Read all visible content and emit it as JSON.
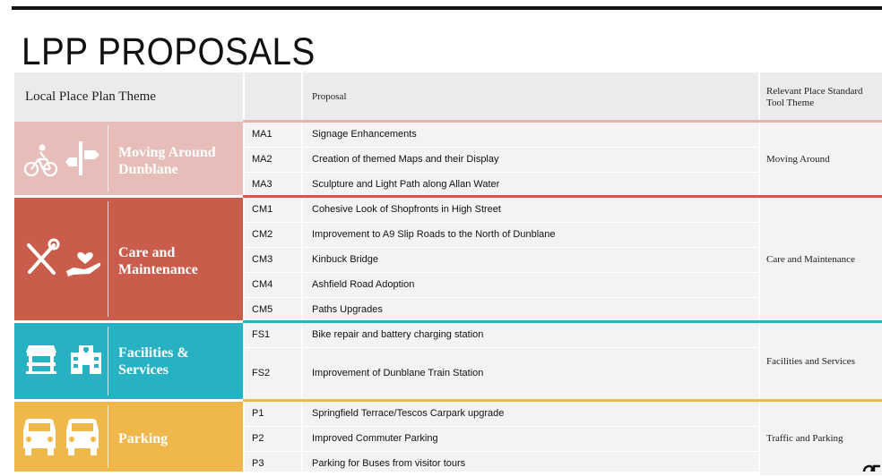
{
  "page": {
    "title": "LPP PROPOSALS"
  },
  "table": {
    "headers": {
      "theme": "Local Place Plan Theme",
      "code": "",
      "proposal": "Proposal",
      "relevant": "Relevant Place Standard Tool Theme"
    },
    "groups": [
      {
        "theme_line1": "Moving Around",
        "theme_line2": "Dunblane",
        "color": "#e6bdb8",
        "line_color": "#e8b4ae",
        "icons": [
          "cyclist-icon",
          "signpost-icon"
        ],
        "relevant": "Moving Around",
        "rows": [
          {
            "code": "MA1",
            "proposal": "Signage Enhancements"
          },
          {
            "code": "MA2",
            "proposal": "Creation of themed Maps and their Display"
          },
          {
            "code": "MA3",
            "proposal": "Sculpture and Light Path along Allan Water"
          }
        ]
      },
      {
        "theme_line1": "Care and",
        "theme_line2": "Maintenance",
        "color": "#c95c4b",
        "line_color": "#c95c4b",
        "icons": [
          "tools-icon",
          "caring-hand-icon"
        ],
        "relevant": "Care and Maintenance",
        "rows": [
          {
            "code": "CM1",
            "proposal": "Cohesive Look of Shopfronts in High Street"
          },
          {
            "code": "CM2",
            "proposal": "Improvement to A9 Slip Roads to the North of Dunblane"
          },
          {
            "code": "CM3",
            "proposal": "Kinbuck Bridge"
          },
          {
            "code": "CM4",
            "proposal": "Ashfield Road Adoption"
          },
          {
            "code": "CM5",
            "proposal": "Paths Upgrades"
          }
        ]
      },
      {
        "theme_line1": "Facilities &",
        "theme_line2": "Services",
        "color": "#27b2c3",
        "line_color": "#27b2c3",
        "icons": [
          "shop-icon",
          "hospital-icon"
        ],
        "relevant": "Facilities and Services",
        "rows": [
          {
            "code": "FS1",
            "proposal": "Bike repair and battery charging station"
          },
          {
            "code": "FS2",
            "proposal": "Improvement of Dunblane Train Station"
          }
        ]
      },
      {
        "theme_line1": "Parking",
        "theme_line2": "",
        "color": "#f0b84b",
        "line_color": "#f0b84b",
        "icons": [
          "car-icon",
          "car-icon"
        ],
        "relevant": "Traffic and Parking",
        "rows": [
          {
            "code": "P1",
            "proposal": "Springfield Terrace/Tescos Carpark upgrade"
          },
          {
            "code": "P2",
            "proposal": "Improved Commuter Parking"
          },
          {
            "code": "P3",
            "proposal": "Parking for Buses from visitor tours"
          }
        ]
      }
    ]
  }
}
